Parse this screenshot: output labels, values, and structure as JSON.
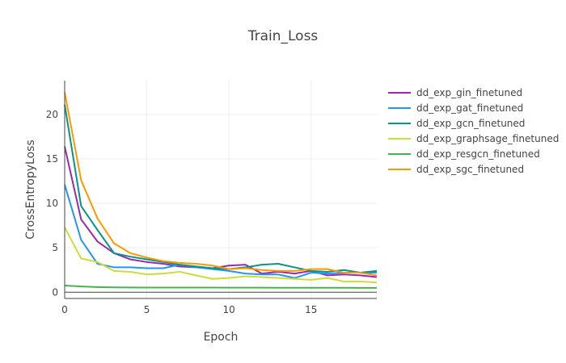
{
  "chart_data": {
    "type": "line",
    "title": "Train_Loss",
    "xlabel": "Epoch",
    "ylabel": "CrossEntropyLoss",
    "xlim": [
      0,
      19
    ],
    "ylim": [
      -0.7,
      23.8
    ],
    "xticks": [
      0,
      5,
      10,
      15
    ],
    "yticks": [
      0,
      5,
      10,
      15,
      20
    ],
    "grid": true,
    "legend_position": "top-right",
    "x": [
      0,
      1,
      2,
      3,
      4,
      5,
      6,
      7,
      8,
      9,
      10,
      11,
      12,
      13,
      14,
      15,
      16,
      17,
      18,
      19
    ],
    "series": [
      {
        "name": "dd_exp_gin_finetuned",
        "color": "#9c27b0",
        "values": [
          16.4,
          8.2,
          5.7,
          4.4,
          3.7,
          3.4,
          3.2,
          2.9,
          2.8,
          2.7,
          3.0,
          3.1,
          2.1,
          2.3,
          2.1,
          2.4,
          1.9,
          2.0,
          1.9,
          1.7
        ]
      },
      {
        "name": "dd_exp_gat_finetuned",
        "color": "#2196f3",
        "values": [
          12.1,
          5.9,
          3.2,
          2.8,
          2.8,
          2.7,
          2.7,
          3.1,
          2.8,
          2.6,
          2.4,
          2.1,
          2.0,
          2.0,
          1.6,
          2.2,
          2.1,
          2.2,
          2.2,
          2.2
        ]
      },
      {
        "name": "dd_exp_gcn_finetuned",
        "color": "#009688",
        "values": [
          21.1,
          9.7,
          7.0,
          4.4,
          4.0,
          3.7,
          3.4,
          3.1,
          2.9,
          2.7,
          2.6,
          2.8,
          3.1,
          3.2,
          2.8,
          2.4,
          2.3,
          2.5,
          2.2,
          2.4
        ]
      },
      {
        "name": "dd_exp_graphsage_finetuned",
        "color": "#cddc39",
        "values": [
          7.3,
          3.8,
          3.4,
          2.4,
          2.3,
          2.0,
          2.1,
          2.3,
          1.9,
          1.5,
          1.6,
          1.8,
          1.7,
          1.6,
          1.5,
          1.4,
          1.6,
          1.2,
          1.2,
          1.1
        ]
      },
      {
        "name": "dd_exp_resgcn_finetuned",
        "color": "#4caf50",
        "values": [
          0.75,
          0.65,
          0.58,
          0.55,
          0.54,
          0.53,
          0.53,
          0.52,
          0.52,
          0.52,
          0.51,
          0.51,
          0.51,
          0.5,
          0.5,
          0.5,
          0.5,
          0.5,
          0.49,
          0.49
        ]
      },
      {
        "name": "dd_exp_sgc_finetuned",
        "color": "#ff9800",
        "values": [
          22.5,
          12.6,
          8.3,
          5.5,
          4.4,
          3.9,
          3.5,
          3.3,
          3.2,
          3.0,
          2.6,
          2.7,
          2.5,
          2.4,
          2.4,
          2.6,
          2.6,
          2.2,
          2.2,
          1.9
        ]
      }
    ]
  }
}
